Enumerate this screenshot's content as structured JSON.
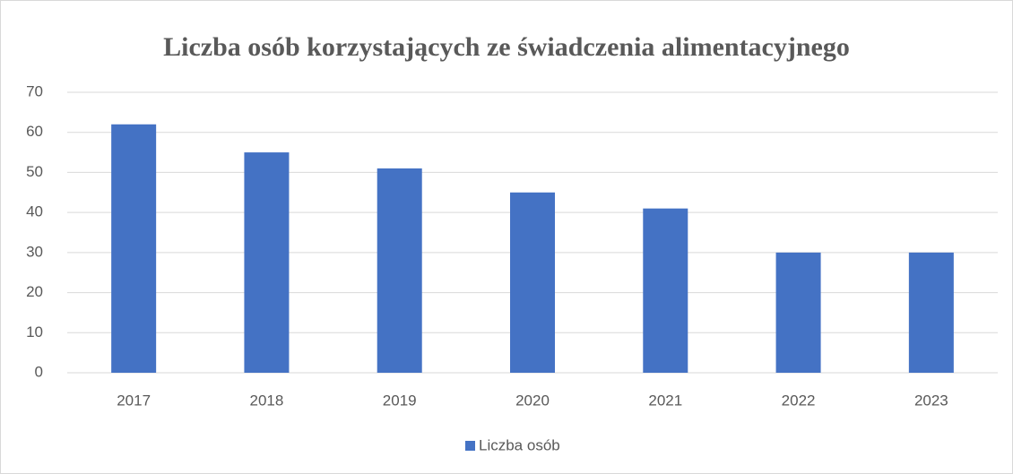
{
  "chart_data": {
    "type": "bar",
    "title": "Liczba osób korzystających ze świadczenia alimentacyjnego",
    "categories": [
      "2017",
      "2018",
      "2019",
      "2020",
      "2021",
      "2022",
      "2023"
    ],
    "series": [
      {
        "name": "Liczba osób",
        "color": "#4472c4",
        "values": [
          62,
          55,
          51,
          45,
          41,
          30,
          30
        ]
      }
    ],
    "ylim": [
      0,
      70
    ],
    "yticks": [
      0,
      10,
      20,
      30,
      40,
      50,
      60,
      70
    ],
    "grid": true,
    "legend": "bottom"
  }
}
